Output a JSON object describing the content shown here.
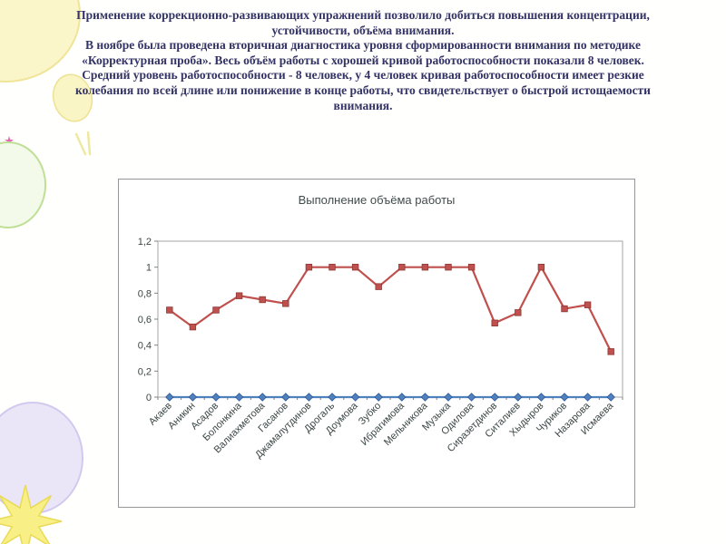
{
  "slide": {
    "text_color": "#333366",
    "paragraph1": "Применение коррекционно-развивающих упражнений позволило добиться повышения концентрации, устойчивости, объёма внимания.",
    "paragraph2": "В ноябре  была проведена вторичная диагностика уровня сформированности внимания по методике «Корректурная проба». Весь объём работы с хорошей кривой работоспособности показали 8 человек. Средний уровень работоспособности - 8 человек,  у 4 человек кривая работоспособности имеет резкие колебания по  всей длине или понижение в конце работы, что свидетельствует о быстрой истощаемости внимания."
  },
  "chart_data": {
    "type": "line",
    "title": "Выполнение объёма работы",
    "categories": [
      "Акаев",
      "Аникин",
      "Асадов",
      "Болонкина",
      "Валиахметова",
      "Гасанов",
      "Джамалутдинов",
      "Дрогаль",
      "Доумова",
      "Зубко",
      "Ибрагимова",
      "Мельникова",
      "Музыка",
      "Одилова",
      "Сиразетдинов",
      "Ситалиев",
      "Хыдыров",
      "Чуриков",
      "Назарова",
      "Исмаева"
    ],
    "series": [
      {
        "marker": "square",
        "color": "#C0504D",
        "edge_color": "#8C3836",
        "values": [
          0.67,
          0.54,
          0.67,
          0.78,
          0.75,
          0.72,
          1,
          1,
          1,
          0.85,
          1,
          1,
          1,
          1,
          0.57,
          0.65,
          1,
          0.68,
          0.71,
          0.35
        ]
      },
      {
        "marker": "diamond",
        "color": "#4F81BD",
        "edge_color": "#2F5597",
        "values": [
          0,
          0,
          0,
          0,
          0,
          0,
          0,
          0,
          0,
          0,
          0,
          0,
          0,
          0,
          0,
          0,
          0,
          0,
          0,
          0
        ]
      }
    ],
    "ylim": [
      0,
      1.2
    ],
    "yticks": [
      0,
      0.2,
      0.4,
      0.6,
      0.8,
      1,
      1.2
    ],
    "ytick_labels": [
      "0",
      "0,2",
      "0,4",
      "0,6",
      "0,8",
      "1",
      "1,2"
    ],
    "grid": false,
    "legend": "none"
  }
}
